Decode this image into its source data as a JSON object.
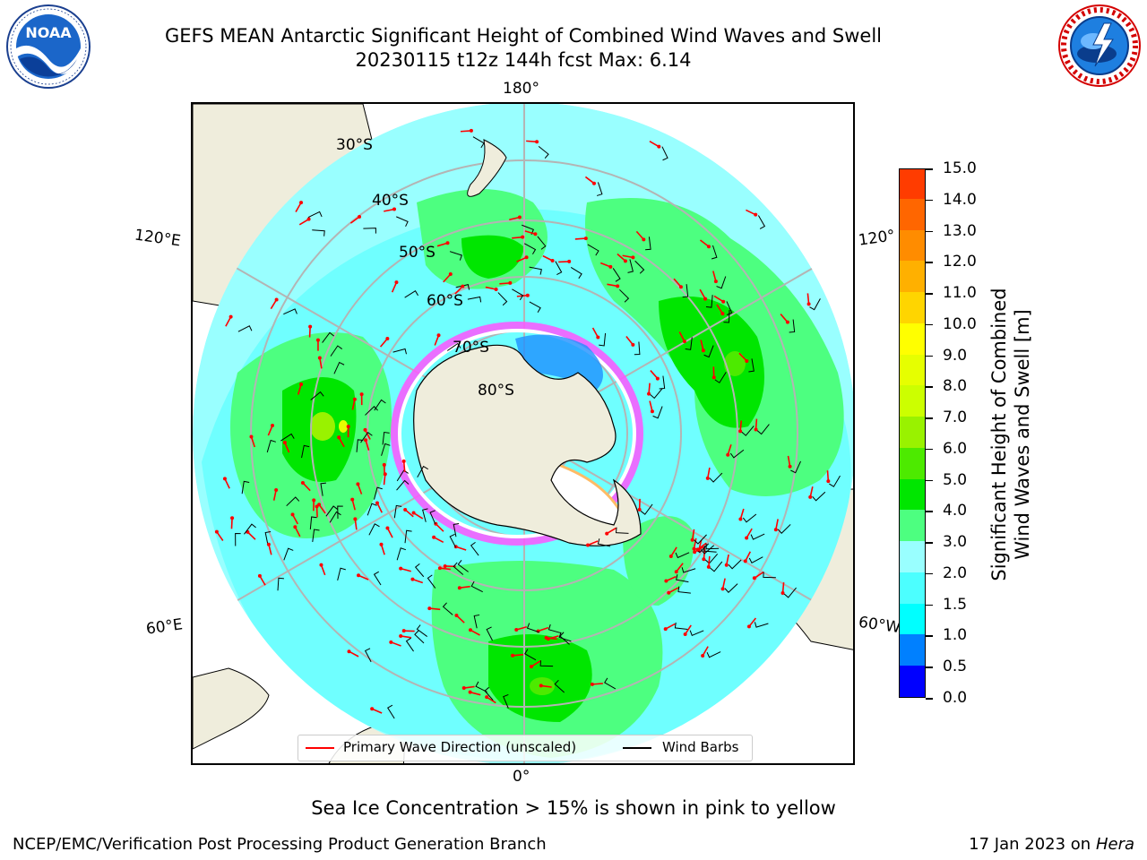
{
  "header": {
    "title_line1": "GEFS MEAN Antarctic Significant Height of Combined Wind Waves and Swell",
    "title_line2": "20230115 t12z 144h fcst   Max: 6.14"
  },
  "logos": {
    "left": {
      "icon": "noaa-logo-icon",
      "text": "NOAA"
    },
    "right": {
      "icon": "nws-logo-icon"
    }
  },
  "map": {
    "projection": "south-polar-stereographic",
    "lon_labels": {
      "top": "180°",
      "bottom": "0°",
      "upper_left": "120°E",
      "upper_right": "120°",
      "lower_left": "60°E",
      "lower_right": "60°W"
    },
    "lat_labels": [
      "30°S",
      "40°S",
      "50°S",
      "60°S",
      "70°S",
      "80°S"
    ],
    "colors": {
      "ocean_base": "#99ffff",
      "land": "#efeddc",
      "graticule": "#b4b4b4",
      "arrow": "#ff0000",
      "barb": "#000000"
    }
  },
  "legend": {
    "wave_dir": "Primary Wave Direction (unscaled)",
    "wind_barbs": "Wind Barbs",
    "wave_dir_color": "#ff0000",
    "barb_color": "#000000"
  },
  "colorbar": {
    "title_line1": "Significant Height of Combined",
    "title_line2": "Wind Waves and Swell [m]",
    "labels": [
      "15.0",
      "14.0",
      "13.0",
      "12.0",
      "11.0",
      "10.0",
      "9.0",
      "8.0",
      "7.0",
      "6.0",
      "5.0",
      "4.0",
      "3.0",
      "2.0",
      "1.5",
      "1.0",
      "0.5",
      "0.0"
    ],
    "colors": [
      "#0000ff",
      "#0080ff",
      "#00ffff",
      "#4cffff",
      "#99ffff",
      "#4dff80",
      "#00e600",
      "#4dea00",
      "#99f200",
      "#ccff00",
      "#e6ff00",
      "#ffff00",
      "#ffd500",
      "#ffb000",
      "#ff8c00",
      "#ff6600",
      "#ff3c00",
      "#ff1400",
      "#ff0000"
    ]
  },
  "notes": {
    "sea_ice": "Sea Ice Concentration > 15% is shown in pink to yellow"
  },
  "footer": {
    "left": "NCEP/EMC/Verification Post Processing Product Generation Branch",
    "right_date": "17 Jan 2023 on ",
    "right_host": "Hera"
  }
}
